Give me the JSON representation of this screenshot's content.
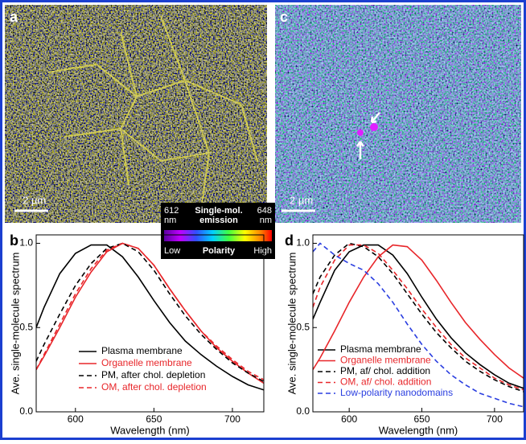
{
  "images": [
    {
      "label": "a",
      "scale_bar": "2 µm"
    },
    {
      "label": "c",
      "scale_bar": "2 µm"
    }
  ],
  "colorbar": {
    "left": [
      "612",
      "nm"
    ],
    "right": [
      "648",
      "nm"
    ],
    "title": [
      "Single-mol.",
      "emission"
    ],
    "low": "Low",
    "axis": "Polarity",
    "high": "High"
  },
  "chart_data": [
    {
      "type": "line",
      "label": "b",
      "xlabel": "Wavelength (nm)",
      "ylabel": "Ave. single-molecule spectrum",
      "x": [
        575,
        580,
        590,
        600,
        610,
        620,
        630,
        640,
        650,
        660,
        670,
        680,
        690,
        700,
        710,
        720
      ],
      "xlim": [
        575,
        720
      ],
      "ylim": [
        0,
        1.05
      ],
      "xticks": [
        600,
        650,
        700
      ],
      "yticks": [
        {
          "value": 0,
          "label": "0.0"
        },
        {
          "value": 0.5,
          "label": "0.5"
        },
        {
          "value": 1,
          "label": "1.0"
        }
      ],
      "legend": "lower left",
      "series": [
        {
          "name": "Plasma membrane",
          "color": "#000000",
          "dashed": false,
          "values": [
            0.5,
            0.62,
            0.82,
            0.94,
            0.99,
            0.99,
            0.92,
            0.8,
            0.66,
            0.53,
            0.42,
            0.34,
            0.27,
            0.21,
            0.16,
            0.13
          ]
        },
        {
          "name": "Organelle membrane",
          "color": "#e8262a",
          "dashed": false,
          "values": [
            0.25,
            0.33,
            0.5,
            0.68,
            0.83,
            0.95,
            1.0,
            0.97,
            0.87,
            0.73,
            0.6,
            0.48,
            0.38,
            0.3,
            0.23,
            0.17
          ]
        },
        {
          "name": "PM, after chol. depletion",
          "color": "#000000",
          "dashed": true,
          "values": [
            0.3,
            0.4,
            0.58,
            0.75,
            0.88,
            0.97,
            1.0,
            0.95,
            0.84,
            0.7,
            0.57,
            0.46,
            0.37,
            0.29,
            0.23,
            0.18
          ]
        },
        {
          "name": "OM, after chol. depletion",
          "color": "#e8262a",
          "dashed": true,
          "values": [
            0.25,
            0.34,
            0.52,
            0.7,
            0.85,
            0.96,
            1.0,
            0.97,
            0.87,
            0.73,
            0.6,
            0.48,
            0.39,
            0.31,
            0.24,
            0.19
          ]
        }
      ]
    },
    {
      "type": "line",
      "label": "d",
      "xlabel": "Wavelength (nm)",
      "ylabel": "Ave. single-molecule spectrum",
      "x": [
        575,
        580,
        590,
        600,
        610,
        620,
        630,
        640,
        650,
        660,
        670,
        680,
        690,
        700,
        710,
        720
      ],
      "xlim": [
        575,
        720
      ],
      "ylim": [
        0,
        1.05
      ],
      "xticks": [
        600,
        650,
        700
      ],
      "yticks": [
        {
          "value": 0,
          "label": "0.0"
        },
        {
          "value": 0.5,
          "label": "0.5"
        },
        {
          "value": 1,
          "label": "1.0"
        }
      ],
      "legend": "lower left",
      "series": [
        {
          "name": "Plasma membrane",
          "color": "#000000",
          "dashed": false,
          "values": [
            0.55,
            0.65,
            0.84,
            0.95,
            0.99,
            0.99,
            0.93,
            0.82,
            0.68,
            0.55,
            0.44,
            0.35,
            0.28,
            0.22,
            0.17,
            0.14
          ]
        },
        {
          "name": "Organelle membrane",
          "color": "#e8262a",
          "dashed": false,
          "values": [
            0.25,
            0.32,
            0.48,
            0.65,
            0.8,
            0.92,
            0.99,
            0.98,
            0.9,
            0.78,
            0.65,
            0.53,
            0.43,
            0.34,
            0.26,
            0.2
          ]
        },
        {
          "name": "PM, af/ chol. addition",
          "color": "#000000",
          "dashed": true,
          "values": [
            0.7,
            0.8,
            0.93,
            1.0,
            0.98,
            0.92,
            0.82,
            0.7,
            0.58,
            0.47,
            0.38,
            0.3,
            0.24,
            0.19,
            0.15,
            0.12
          ]
        },
        {
          "name": "OM, af/ chol. addition",
          "color": "#e8262a",
          "dashed": true,
          "values": [
            0.62,
            0.74,
            0.9,
            0.99,
            0.99,
            0.94,
            0.84,
            0.73,
            0.61,
            0.5,
            0.4,
            0.32,
            0.26,
            0.2,
            0.16,
            0.13
          ]
        },
        {
          "name": "Low-polarity nanodomains",
          "color": "#2a3ee0",
          "dashed": true,
          "values": [
            0.95,
            1.0,
            0.93,
            0.88,
            0.84,
            0.76,
            0.65,
            0.52,
            0.4,
            0.3,
            0.22,
            0.16,
            0.11,
            0.08,
            0.05,
            0.03
          ]
        }
      ]
    }
  ]
}
